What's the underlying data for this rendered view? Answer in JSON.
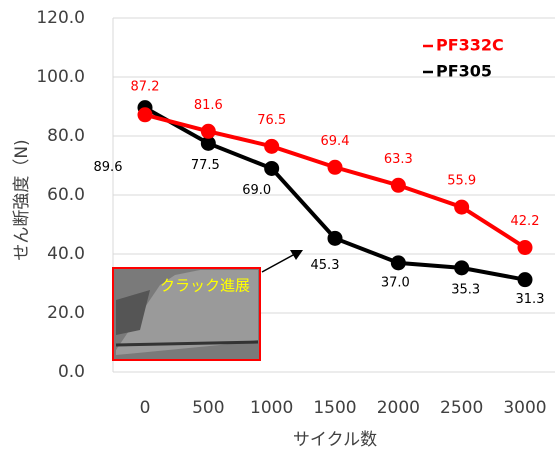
{
  "chart_data": {
    "type": "line",
    "y_label": "せん断強度（N)",
    "x_label": "サイクル数",
    "annotation": "クラック進展",
    "categories": [
      "0",
      "500",
      "1000",
      "1500",
      "2000",
      "2500",
      "3000"
    ],
    "series": [
      {
        "name": "PF332C",
        "color": "#ff0000",
        "values": [
          87.2,
          81.6,
          76.5,
          69.4,
          63.3,
          55.9,
          42.2
        ],
        "value_labels": [
          "87.2",
          "81.6",
          "76.5",
          "69.4",
          "63.3",
          "55.9",
          "42.2"
        ]
      },
      {
        "name": "PF305",
        "color": "#000000",
        "values": [
          89.6,
          77.5,
          69.0,
          45.3,
          37.0,
          35.3,
          31.3
        ],
        "value_labels": [
          "89.6",
          "77.5",
          "69.0",
          "45.3",
          "37.0",
          "35.3",
          "31.3"
        ]
      }
    ],
    "ylim": [
      0,
      120
    ],
    "yticks": [
      {
        "value": 0,
        "label": "0.0"
      },
      {
        "value": 20,
        "label": "20.0"
      },
      {
        "value": 40,
        "label": "40.0"
      },
      {
        "value": 60,
        "label": "60.0"
      },
      {
        "value": 80,
        "label": "80.0"
      },
      {
        "value": 100,
        "label": "100.0"
      },
      {
        "value": 120,
        "label": "120.0"
      }
    ],
    "grid": true
  }
}
